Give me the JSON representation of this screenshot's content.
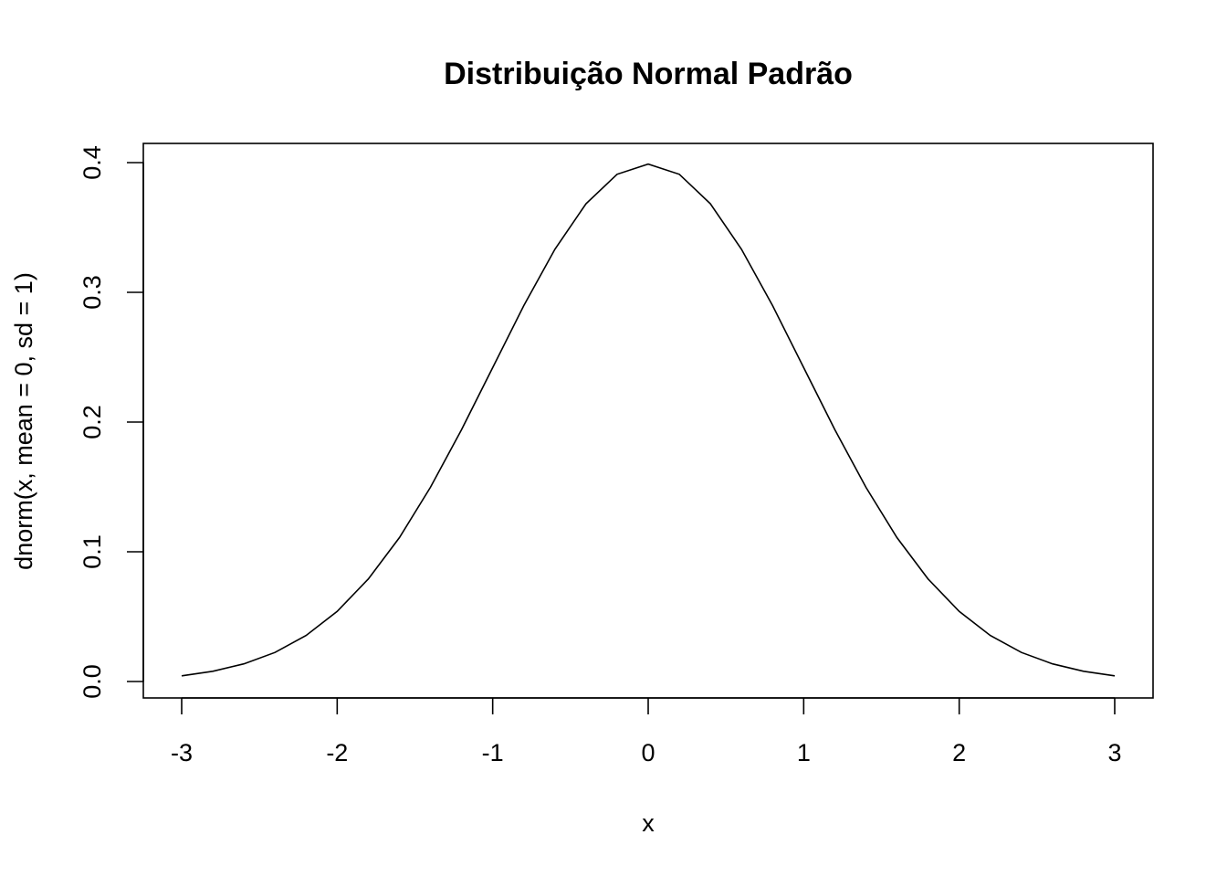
{
  "chart_data": {
    "type": "line",
    "title": "Distribuição Normal Padrão",
    "xlabel": "x",
    "ylabel": "dnorm(x, mean = 0, sd = 1)",
    "xlim": [
      -3,
      3
    ],
    "ylim": [
      0,
      0.4
    ],
    "x_ticks": [
      -3,
      -2,
      -1,
      0,
      1,
      2,
      3
    ],
    "x_tick_labels": [
      "-3",
      "-2",
      "-1",
      "0",
      "1",
      "2",
      "3"
    ],
    "y_ticks": [
      0,
      0.1,
      0.2,
      0.3,
      0.4
    ],
    "y_tick_labels": [
      "0.0",
      "0.1",
      "0.2",
      "0.3",
      "0.4"
    ],
    "grid": false,
    "series": [
      {
        "x": [
          -3,
          -2.8,
          -2.6,
          -2.4,
          -2.2,
          -2,
          -1.8,
          -1.6,
          -1.4,
          -1.2,
          -1,
          -0.8,
          -0.6,
          -0.4,
          -0.2,
          0,
          0.2,
          0.4,
          0.6,
          0.8,
          1,
          1.2,
          1.4,
          1.6,
          1.8,
          2,
          2.2,
          2.4,
          2.6,
          2.8,
          3
        ],
        "y": [
          0.0044,
          0.0079,
          0.0136,
          0.0224,
          0.0355,
          0.054,
          0.079,
          0.1109,
          0.1497,
          0.1942,
          0.242,
          0.2897,
          0.3332,
          0.3683,
          0.391,
          0.3989,
          0.391,
          0.3683,
          0.3332,
          0.2897,
          0.242,
          0.1942,
          0.1497,
          0.1109,
          0.079,
          0.054,
          0.0355,
          0.0224,
          0.0136,
          0.0079,
          0.0044
        ],
        "color": "#000000"
      }
    ]
  }
}
